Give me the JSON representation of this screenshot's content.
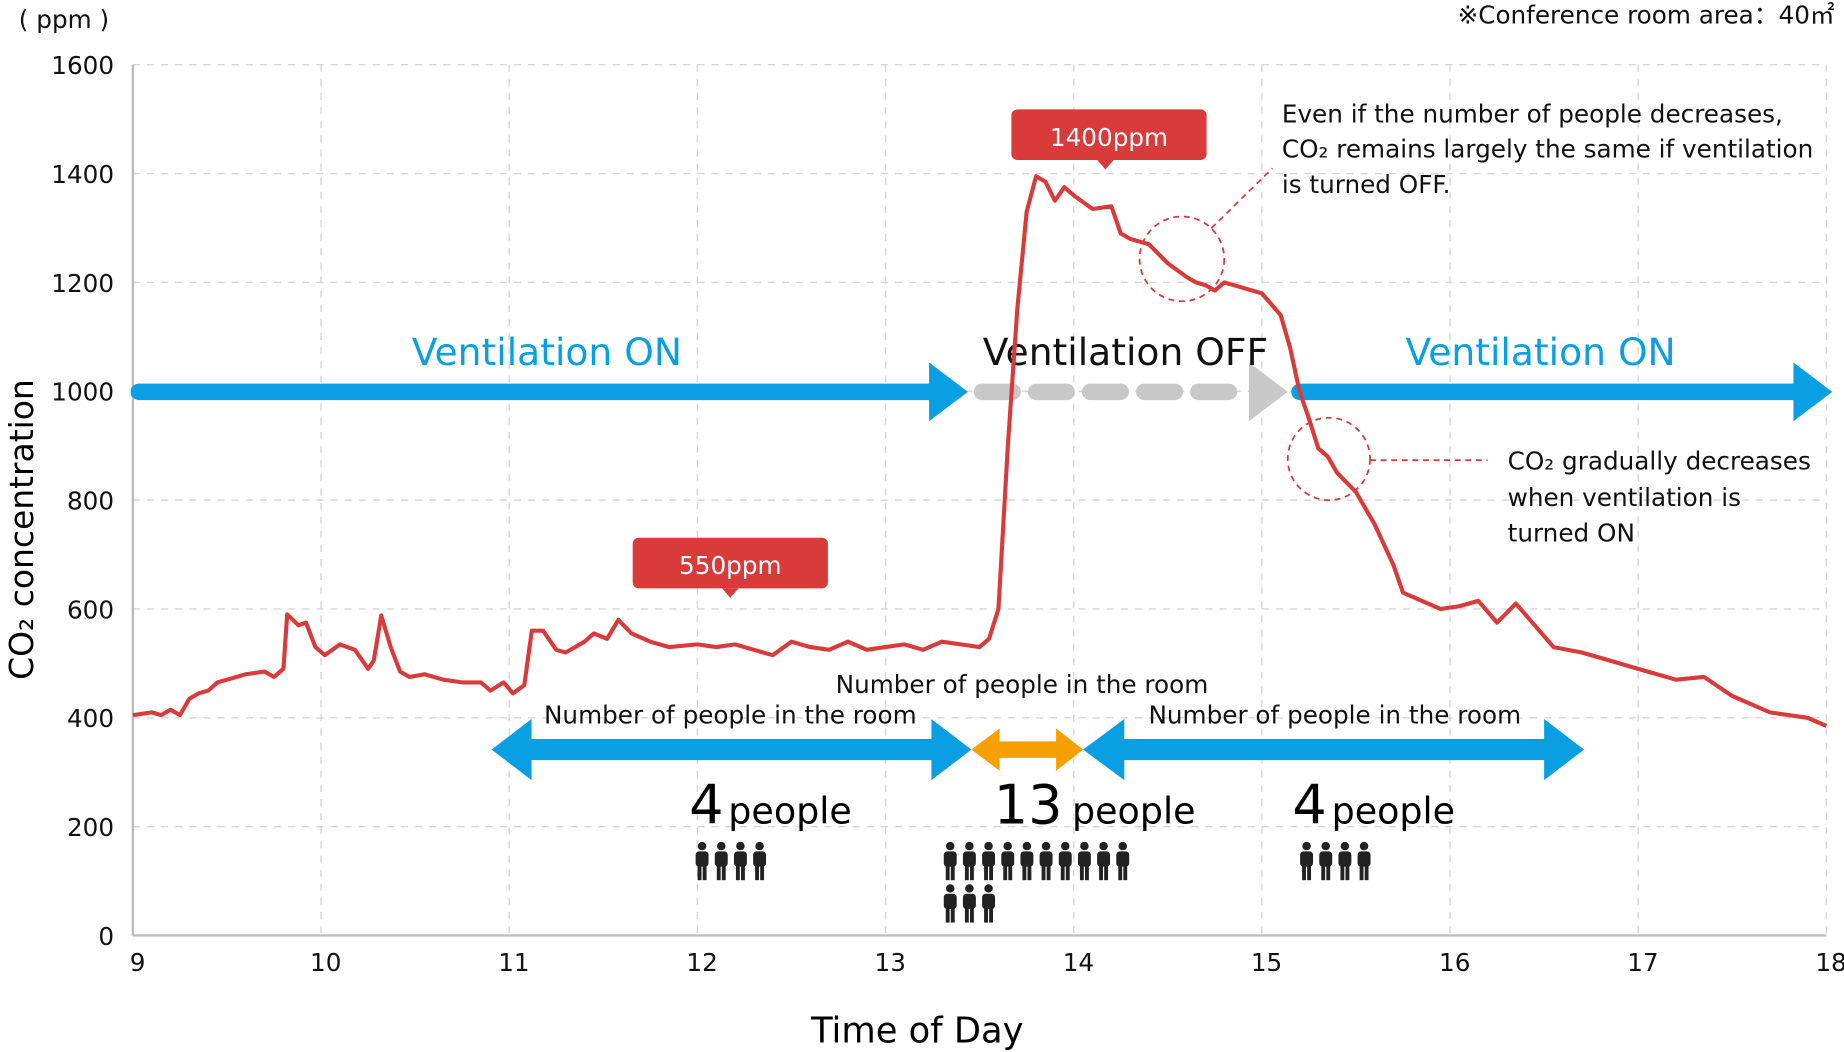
{
  "colors": {
    "line": "#d93a3a",
    "on": "#0a9fe3",
    "off": "#c8c8c8",
    "crowd": "#f5a000",
    "callout": "#d93a3a",
    "person": "#222222"
  },
  "header": {
    "unit_label": "( ppm )",
    "area_note": "※Conference room area：40㎡"
  },
  "callouts": {
    "peak": "1400ppm",
    "baseline": "550ppm"
  },
  "ventilation": {
    "on_left": "Ventilation ON",
    "off": "Ventilation OFF",
    "on_right": "Ventilation ON"
  },
  "annotations": {
    "off_note": [
      "Even if the number of people decreases,",
      "CO₂ remains largely the same if ventilation",
      "is turned OFF."
    ],
    "on_note": [
      "CO₂ gradually decreases",
      "when ventilation is",
      "turned ON"
    ]
  },
  "occupancy": [
    {
      "label": "Number of people in the room",
      "count": "4",
      "unit": "people",
      "persons": 4
    },
    {
      "label": "Number of people in the room",
      "count": "13",
      "unit": "people",
      "persons": 13
    },
    {
      "label": "Number of people in the room",
      "count": "4",
      "unit": "people",
      "persons": 4
    }
  ],
  "chart_data": {
    "type": "line",
    "title": "",
    "xlabel": "Time of Day",
    "ylabel": "CO₂ concentration",
    "xlim": [
      9,
      18
    ],
    "ylim": [
      0,
      1600
    ],
    "xticks": [
      "9",
      "10",
      "11",
      "12",
      "13",
      "14",
      "15",
      "16",
      "17",
      "18"
    ],
    "yticks": [
      "0",
      "200",
      "400",
      "600",
      "800",
      "1000",
      "1200",
      "1400",
      "1600"
    ],
    "grid": true,
    "series": [
      {
        "name": "CO₂ concentration",
        "points": [
          [
            9.0,
            405
          ],
          [
            9.1,
            410
          ],
          [
            9.15,
            405
          ],
          [
            9.2,
            415
          ],
          [
            9.25,
            405
          ],
          [
            9.3,
            435
          ],
          [
            9.35,
            445
          ],
          [
            9.4,
            450
          ],
          [
            9.45,
            465
          ],
          [
            9.5,
            470
          ],
          [
            9.6,
            480
          ],
          [
            9.7,
            485
          ],
          [
            9.75,
            475
          ],
          [
            9.8,
            490
          ],
          [
            9.82,
            590
          ],
          [
            9.88,
            570
          ],
          [
            9.92,
            575
          ],
          [
            9.97,
            530
          ],
          [
            10.02,
            515
          ],
          [
            10.1,
            535
          ],
          [
            10.18,
            525
          ],
          [
            10.25,
            490
          ],
          [
            10.28,
            505
          ],
          [
            10.32,
            588
          ],
          [
            10.37,
            530
          ],
          [
            10.42,
            485
          ],
          [
            10.47,
            475
          ],
          [
            10.55,
            480
          ],
          [
            10.65,
            470
          ],
          [
            10.75,
            465
          ],
          [
            10.85,
            465
          ],
          [
            10.9,
            450
          ],
          [
            10.97,
            465
          ],
          [
            11.02,
            445
          ],
          [
            11.08,
            460
          ],
          [
            11.12,
            560
          ],
          [
            11.18,
            560
          ],
          [
            11.25,
            525
          ],
          [
            11.3,
            520
          ],
          [
            11.4,
            540
          ],
          [
            11.45,
            555
          ],
          [
            11.52,
            545
          ],
          [
            11.58,
            580
          ],
          [
            11.65,
            555
          ],
          [
            11.75,
            540
          ],
          [
            11.85,
            530
          ],
          [
            12.0,
            535
          ],
          [
            12.1,
            530
          ],
          [
            12.2,
            535
          ],
          [
            12.3,
            525
          ],
          [
            12.4,
            515
          ],
          [
            12.5,
            540
          ],
          [
            12.6,
            530
          ],
          [
            12.7,
            525
          ],
          [
            12.8,
            540
          ],
          [
            12.9,
            525
          ],
          [
            13.0,
            530
          ],
          [
            13.1,
            535
          ],
          [
            13.2,
            525
          ],
          [
            13.3,
            540
          ],
          [
            13.4,
            535
          ],
          [
            13.5,
            530
          ],
          [
            13.55,
            545
          ],
          [
            13.6,
            600
          ],
          [
            13.65,
            900
          ],
          [
            13.7,
            1150
          ],
          [
            13.75,
            1330
          ],
          [
            13.8,
            1395
          ],
          [
            13.85,
            1385
          ],
          [
            13.9,
            1350
          ],
          [
            13.95,
            1375
          ],
          [
            14.0,
            1360
          ],
          [
            14.1,
            1335
          ],
          [
            14.2,
            1340
          ],
          [
            14.25,
            1290
          ],
          [
            14.3,
            1280
          ],
          [
            14.4,
            1270
          ],
          [
            14.5,
            1235
          ],
          [
            14.6,
            1210
          ],
          [
            14.65,
            1200
          ],
          [
            14.7,
            1195
          ],
          [
            14.75,
            1185
          ],
          [
            14.8,
            1200
          ],
          [
            14.9,
            1190
          ],
          [
            15.0,
            1180
          ],
          [
            15.05,
            1160
          ],
          [
            15.1,
            1140
          ],
          [
            15.15,
            1080
          ],
          [
            15.2,
            1000
          ],
          [
            15.25,
            950
          ],
          [
            15.3,
            895
          ],
          [
            15.35,
            880
          ],
          [
            15.4,
            850
          ],
          [
            15.5,
            815
          ],
          [
            15.6,
            755
          ],
          [
            15.7,
            680
          ],
          [
            15.75,
            630
          ],
          [
            15.85,
            615
          ],
          [
            15.95,
            600
          ],
          [
            16.05,
            605
          ],
          [
            16.15,
            615
          ],
          [
            16.25,
            575
          ],
          [
            16.35,
            610
          ],
          [
            16.45,
            570
          ],
          [
            16.55,
            530
          ],
          [
            16.7,
            520
          ],
          [
            16.85,
            505
          ],
          [
            17.0,
            490
          ],
          [
            17.2,
            470
          ],
          [
            17.35,
            475
          ],
          [
            17.5,
            440
          ],
          [
            17.7,
            410
          ],
          [
            17.9,
            400
          ],
          [
            18.0,
            385
          ]
        ]
      }
    ],
    "annotations": [
      "1400ppm",
      "550ppm",
      "Ventilation ON (9–13.4)",
      "Ventilation OFF (13.4–15.2)",
      "Ventilation ON (15.2–18)"
    ]
  }
}
